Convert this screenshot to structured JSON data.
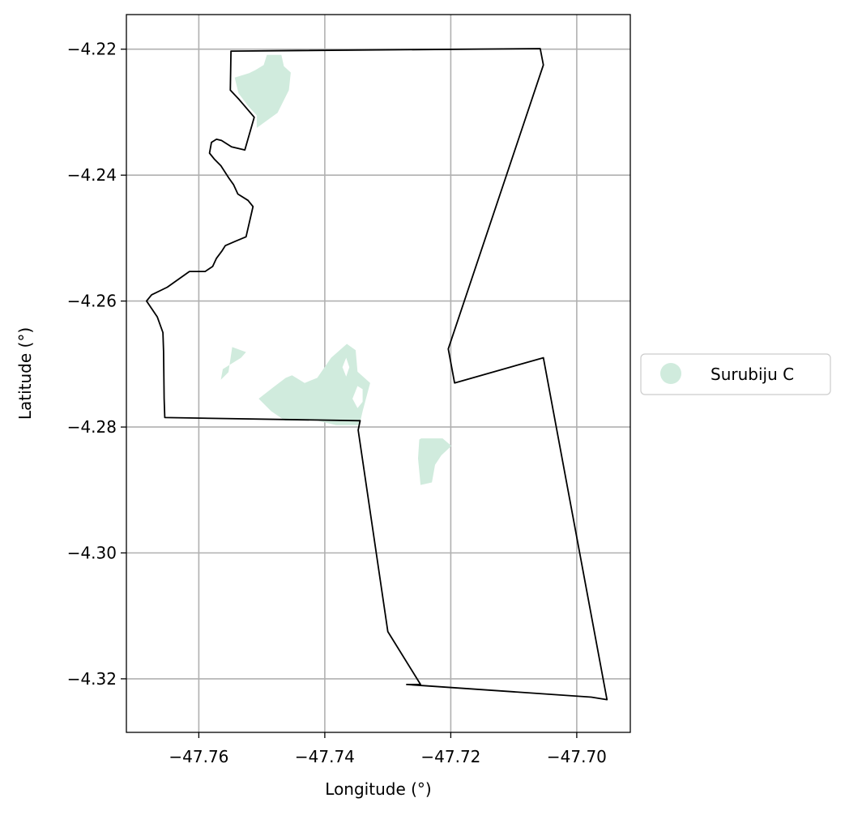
{
  "chart_data": {
    "type": "map",
    "xlabel": "Longitude (°)",
    "ylabel": "Latitude (°)",
    "xlim": [
      -47.7715,
      -47.6915
    ],
    "ylim": [
      -4.3285,
      -4.2145
    ],
    "grid": true,
    "legend_placement": "right",
    "x_ticks": [
      {
        "value": -47.76,
        "label": "−47.76"
      },
      {
        "value": -47.74,
        "label": "−47.74"
      },
      {
        "value": -47.72,
        "label": "−47.72"
      },
      {
        "value": -47.7,
        "label": "−47.70"
      }
    ],
    "y_ticks": [
      {
        "value": -4.22,
        "label": "−4.22"
      },
      {
        "value": -4.24,
        "label": "−4.24"
      },
      {
        "value": -4.26,
        "label": "−4.26"
      },
      {
        "value": -4.28,
        "label": "−4.28"
      },
      {
        "value": -4.3,
        "label": "−4.30"
      },
      {
        "value": -4.32,
        "label": "−4.32"
      }
    ],
    "legend": [
      {
        "label": "Surubiju C",
        "color": "#d0ebdd"
      }
    ],
    "boundary": {
      "stroke": "#000000",
      "coords": [
        [
          -47.7549,
          -4.2203
        ],
        [
          -47.7058,
          -4.2199
        ],
        [
          -47.7053,
          -4.2225
        ],
        [
          -47.7204,
          -4.2676
        ],
        [
          -47.7194,
          -4.273
        ],
        [
          -47.7053,
          -4.269
        ],
        [
          -47.6952,
          -4.3233
        ],
        [
          -47.6977,
          -4.3229
        ],
        [
          -47.727,
          -4.3209
        ],
        [
          -47.7248,
          -4.3209
        ],
        [
          -47.73,
          -4.3125
        ],
        [
          -47.7347,
          -4.2805
        ],
        [
          -47.7344,
          -4.279
        ],
        [
          -47.7654,
          -4.2785
        ],
        [
          -47.7655,
          -4.2755
        ],
        [
          -47.7656,
          -4.268
        ],
        [
          -47.7657,
          -4.265
        ],
        [
          -47.7666,
          -4.2625
        ],
        [
          -47.7683,
          -4.26
        ],
        [
          -47.7675,
          -4.259
        ],
        [
          -47.765,
          -4.2578
        ],
        [
          -47.7615,
          -4.2553
        ],
        [
          -47.759,
          -4.2553
        ],
        [
          -47.7578,
          -4.2545
        ],
        [
          -47.7572,
          -4.2532
        ],
        [
          -47.7563,
          -4.252
        ],
        [
          -47.7558,
          -4.2512
        ],
        [
          -47.7542,
          -4.2505
        ],
        [
          -47.7525,
          -4.2498
        ],
        [
          -47.7514,
          -4.245
        ],
        [
          -47.7522,
          -4.244
        ],
        [
          -47.7538,
          -4.243
        ],
        [
          -47.7545,
          -4.2415
        ],
        [
          -47.7552,
          -4.2405
        ],
        [
          -47.7565,
          -4.2385
        ],
        [
          -47.7575,
          -4.2375
        ],
        [
          -47.7583,
          -4.2365
        ],
        [
          -47.758,
          -4.2348
        ],
        [
          -47.7572,
          -4.2343
        ],
        [
          -47.7564,
          -4.2345
        ],
        [
          -47.7548,
          -4.2355
        ],
        [
          -47.7527,
          -4.236
        ],
        [
          -47.7512,
          -4.2308
        ],
        [
          -47.7536,
          -4.228
        ],
        [
          -47.755,
          -4.2265
        ],
        [
          -47.7549,
          -4.2203
        ]
      ]
    },
    "series": [
      {
        "name": "Surubiju C",
        "color": "#d0ebdd",
        "polygons": [
          [
            [
              -47.7492,
              -4.2209
            ],
            [
              -47.7469,
              -4.2209
            ],
            [
              -47.7465,
              -4.2227
            ],
            [
              -47.7454,
              -4.2237
            ],
            [
              -47.7457,
              -4.2265
            ],
            [
              -47.7475,
              -4.2301
            ],
            [
              -47.7508,
              -4.2325
            ],
            [
              -47.7508,
              -4.2305
            ],
            [
              -47.7522,
              -4.229
            ],
            [
              -47.7537,
              -4.227
            ],
            [
              -47.7543,
              -4.2245
            ],
            [
              -47.752,
              -4.2238
            ],
            [
              -47.751,
              -4.2233
            ],
            [
              -47.7497,
              -4.2225
            ]
          ],
          [
            [
              -47.7547,
              -4.2673
            ],
            [
              -47.7525,
              -4.2681
            ],
            [
              -47.7533,
              -4.269
            ],
            [
              -47.7562,
              -4.2708
            ],
            [
              -47.7565,
              -4.2725
            ],
            [
              -47.7553,
              -4.2713
            ]
          ],
          [
            [
              -47.7365,
              -4.2668
            ],
            [
              -47.7351,
              -4.2678
            ],
            [
              -47.7348,
              -4.2712
            ],
            [
              -47.7328,
              -4.273
            ],
            [
              -47.734,
              -4.2775
            ],
            [
              -47.7345,
              -4.2797
            ],
            [
              -47.7382,
              -4.2797
            ],
            [
              -47.7412,
              -4.279
            ],
            [
              -47.7432,
              -4.279
            ],
            [
              -47.7463,
              -4.279
            ],
            [
              -47.7485,
              -4.2775
            ],
            [
              -47.7505,
              -4.2755
            ],
            [
              -47.7482,
              -4.2737
            ],
            [
              -47.7462,
              -4.2722
            ],
            [
              -47.7452,
              -4.2718
            ],
            [
              -47.7432,
              -4.273
            ],
            [
              -47.7412,
              -4.2722
            ],
            [
              -47.739,
              -4.269
            ]
          ],
          [
            [
              -47.7247,
              -4.2818
            ],
            [
              -47.7213,
              -4.2818
            ],
            [
              -47.7199,
              -4.283
            ],
            [
              -47.7215,
              -4.2845
            ],
            [
              -47.7225,
              -4.286
            ],
            [
              -47.723,
              -4.2888
            ],
            [
              -47.7248,
              -4.2892
            ],
            [
              -47.7252,
              -4.285
            ],
            [
              -47.725,
              -4.282
            ]
          ]
        ]
      }
    ]
  }
}
